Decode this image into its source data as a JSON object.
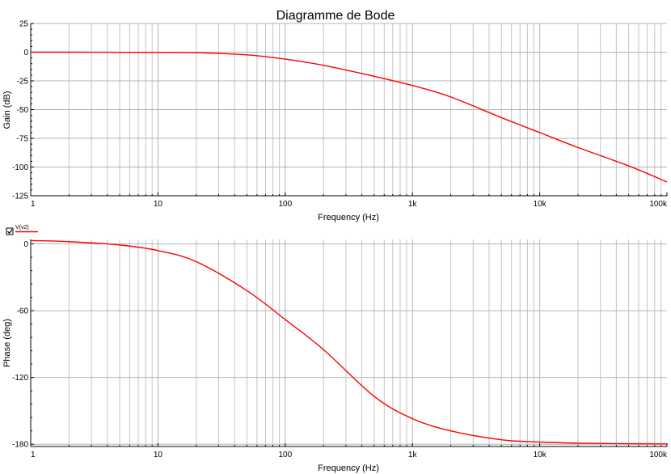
{
  "chart_data": [
    {
      "type": "line",
      "title": "Diagramme de Bode",
      "xlabel": "Frequency (Hz)",
      "ylabel": "Gain (dB)",
      "x_scale": "log",
      "xlim": [
        1,
        100000
      ],
      "ylim": [
        -125,
        25
      ],
      "grid": true,
      "x_tick_labels": [
        "1",
        "10",
        "100",
        "1k",
        "10k",
        "100k"
      ],
      "y_ticks": [
        25,
        0,
        -25,
        -50,
        -75,
        -100,
        -125
      ],
      "y_tick_labels": [
        "25",
        "0",
        "-25",
        "-50",
        "-75",
        "-100",
        "-125"
      ],
      "series": [
        {
          "color": "#ff0000",
          "x": [
            1,
            2,
            5,
            10,
            20,
            50,
            100,
            200,
            500,
            1000,
            2000,
            5000,
            10000,
            20000,
            50000,
            100000
          ],
          "values": [
            0,
            0,
            -0.1,
            -0.2,
            -0.5,
            -2.3,
            -6,
            -11.5,
            -21,
            -29,
            -39,
            -57,
            -70,
            -83,
            -99,
            -113
          ]
        }
      ]
    },
    {
      "type": "line",
      "xlabel": "Frequency (Hz)",
      "ylabel": "Phase (deg)",
      "x_scale": "log",
      "xlim": [
        1,
        100000
      ],
      "ylim": [
        -182,
        4
      ],
      "grid": true,
      "x_tick_labels": [
        "1",
        "10",
        "100",
        "1k",
        "10k",
        "100k"
      ],
      "y_ticks": [
        0,
        -60,
        -120,
        -180
      ],
      "y_tick_labels": [
        "0",
        "-60",
        "-120",
        "-180"
      ],
      "legend": {
        "checked": true,
        "entries": [
          "V(v2)"
        ]
      },
      "series": [
        {
          "name": "V(v2)",
          "color": "#ff0000",
          "x": [
            1,
            2,
            5,
            10,
            20,
            50,
            100,
            200,
            500,
            1000,
            2000,
            5000,
            10000,
            20000,
            50000,
            100000
          ],
          "values": [
            3,
            2,
            -1,
            -6,
            -16,
            -42,
            -68,
            -95,
            -137,
            -157,
            -168,
            -176,
            -178,
            -179,
            -179.5,
            -179.7
          ]
        }
      ]
    }
  ]
}
